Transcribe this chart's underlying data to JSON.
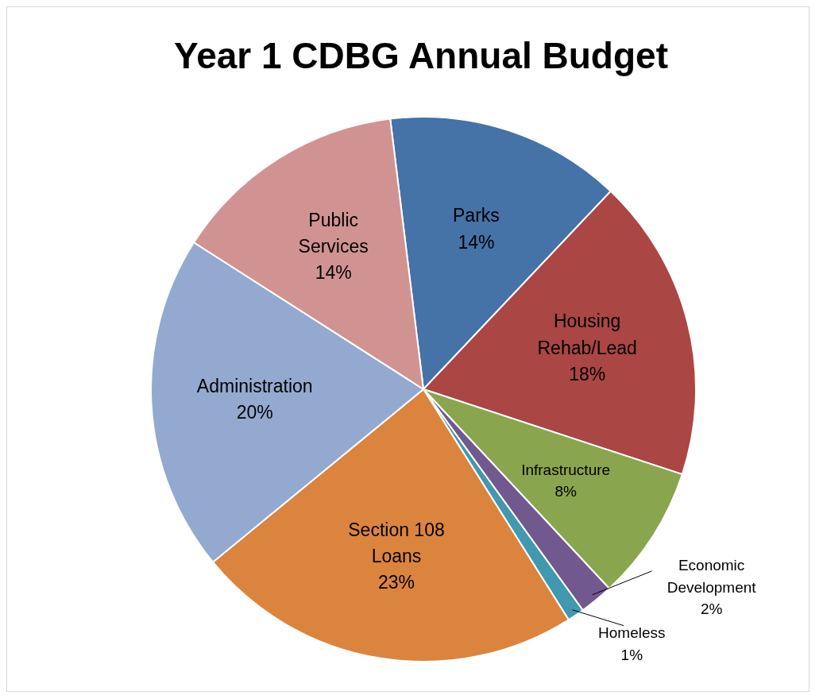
{
  "chart_data": {
    "type": "pie",
    "title": "Year 1 CDBG Annual Budget",
    "categories": [
      "Parks",
      "Housing Rehab/Lead",
      "Infrastructure",
      "Economic Development",
      "Homeless",
      "Section 108 Loans",
      "Administration",
      "Public Services"
    ],
    "values": [
      14,
      18,
      8,
      2,
      1,
      23,
      20,
      14
    ],
    "value_labels": [
      "14%",
      "18%",
      "8%",
      "2%",
      "1%",
      "23%",
      "20%",
      "14%"
    ],
    "colors": [
      "#4572a7",
      "#aa4643",
      "#89a54e",
      "#71588f",
      "#4198af",
      "#db843d",
      "#93a9cf",
      "#d19392"
    ]
  }
}
